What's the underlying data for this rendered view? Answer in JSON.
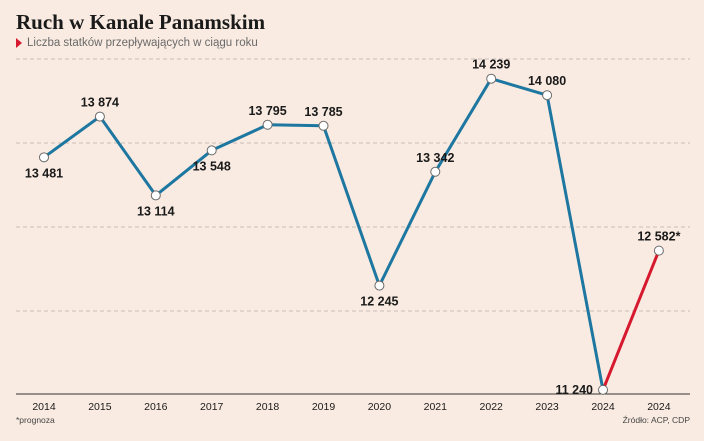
{
  "header": {
    "title": "Ruch w Kanale Panamskim",
    "subtitle": "Liczba statków przepływających w ciągu roku"
  },
  "footer": {
    "note": "*prognoza",
    "source": "Źródło: ACP, CDP"
  },
  "colors": {
    "background": "#f9ebe1",
    "actual_line": "#1d77a1",
    "forecast_line": "#d7192f",
    "grid": "#b9b0a8"
  },
  "chart_data": {
    "type": "line",
    "title": "Ruch w Kanale Panamskim",
    "subtitle": "Liczba statków przepływających w ciągu roku",
    "xlabel": "",
    "ylabel": "",
    "categories": [
      "2014",
      "2015",
      "2016",
      "2017",
      "2018",
      "2019",
      "2020",
      "2021",
      "2022",
      "2023",
      "2024",
      "2024"
    ],
    "series": [
      {
        "values": [
          13481,
          13874,
          13114,
          13548,
          13795,
          13785,
          12245,
          13342,
          14239,
          14080,
          11240,
          null
        ],
        "color": "#1d77a1"
      },
      {
        "values": [
          null,
          null,
          null,
          null,
          null,
          null,
          null,
          null,
          null,
          null,
          11240,
          12582
        ],
        "color": "#d7192f"
      }
    ],
    "data_labels": [
      "13 481",
      "13 874",
      "13 114",
      "13 548",
      "13 795",
      "13 785",
      "12 245",
      "13 342",
      "14 239",
      "14 080",
      "11 240",
      "12 582*"
    ],
    "ylim": [
      11200,
      14400
    ],
    "grid": true,
    "grid_style": "dashed-horizontal",
    "legend": "none",
    "y_tick_labels_shown": false
  }
}
